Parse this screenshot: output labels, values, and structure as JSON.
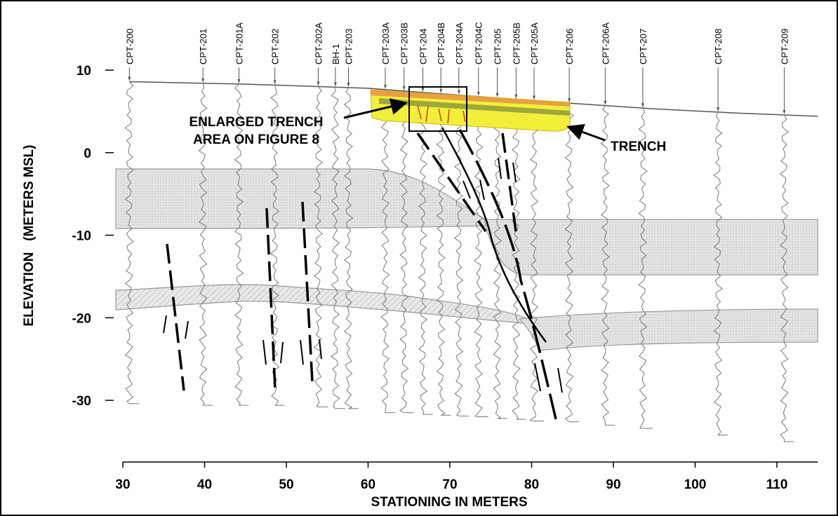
{
  "chart_data": {
    "type": "cross-section",
    "xlabel": "STATIONING IN METERS",
    "ylabel": "ELEVATION   (METERS MSL)",
    "xlim": [
      30,
      115
    ],
    "xticks": [
      30,
      40,
      50,
      60,
      70,
      80,
      90,
      100,
      110
    ],
    "ylim": [
      -30,
      10
    ],
    "yticks": [
      10,
      0,
      -10,
      -20,
      -30
    ],
    "annotations": [
      "ENLARGED TRENCH",
      "AREA ON FIGURE 8",
      "TRENCH"
    ],
    "ground_surface": {
      "x": [
        30.8,
        45,
        60,
        72,
        84.6,
        95,
        105,
        115
      ],
      "values": [
        8.6,
        8.3,
        7.8,
        6.9,
        6.0,
        5.3,
        4.8,
        4.4
      ]
    },
    "boreholes": [
      {
        "name": "CPT-200",
        "station": 30.8,
        "bottom": -30.4
      },
      {
        "name": "CPT-201",
        "station": 39.8,
        "bottom": -30.6
      },
      {
        "name": "CPT-201A",
        "station": 44.2,
        "bottom": -30.6
      },
      {
        "name": "CPT-202",
        "station": 48.6,
        "bottom": -30.6
      },
      {
        "name": "CPT-202A",
        "station": 53.9,
        "bottom": -30.8
      },
      {
        "name": "BH-1",
        "station": 56.0,
        "bottom": -31.0
      },
      {
        "name": "CPT-203",
        "station": 57.6,
        "bottom": -31.0
      },
      {
        "name": "CPT-203A",
        "station": 62.1,
        "bottom": -31.5
      },
      {
        "name": "CPT-203B",
        "station": 64.4,
        "bottom": -31.5
      },
      {
        "name": "CPT-204",
        "station": 66.7,
        "bottom": -31.7
      },
      {
        "name": "CPT-204B",
        "station": 68.9,
        "bottom": -31.8
      },
      {
        "name": "CPT-204A",
        "station": 71.1,
        "bottom": -31.9
      },
      {
        "name": "CPT-204C",
        "station": 73.5,
        "bottom": -32.0
      },
      {
        "name": "CPT-205",
        "station": 75.8,
        "bottom": -32.2
      },
      {
        "name": "CPT-205B",
        "station": 78.1,
        "bottom": -32.3
      },
      {
        "name": "CPT-205A",
        "station": 80.3,
        "bottom": -32.5
      },
      {
        "name": "CPT-206",
        "station": 84.6,
        "bottom": -32.6
      },
      {
        "name": "CPT-206A",
        "station": 89.0,
        "bottom": -33.0
      },
      {
        "name": "CPT-207",
        "station": 93.6,
        "bottom": -33.4
      },
      {
        "name": "CPT-208",
        "station": 102.8,
        "bottom": -34.2
      },
      {
        "name": "CPT-209",
        "station": 110.9,
        "bottom": -35.0
      }
    ]
  }
}
